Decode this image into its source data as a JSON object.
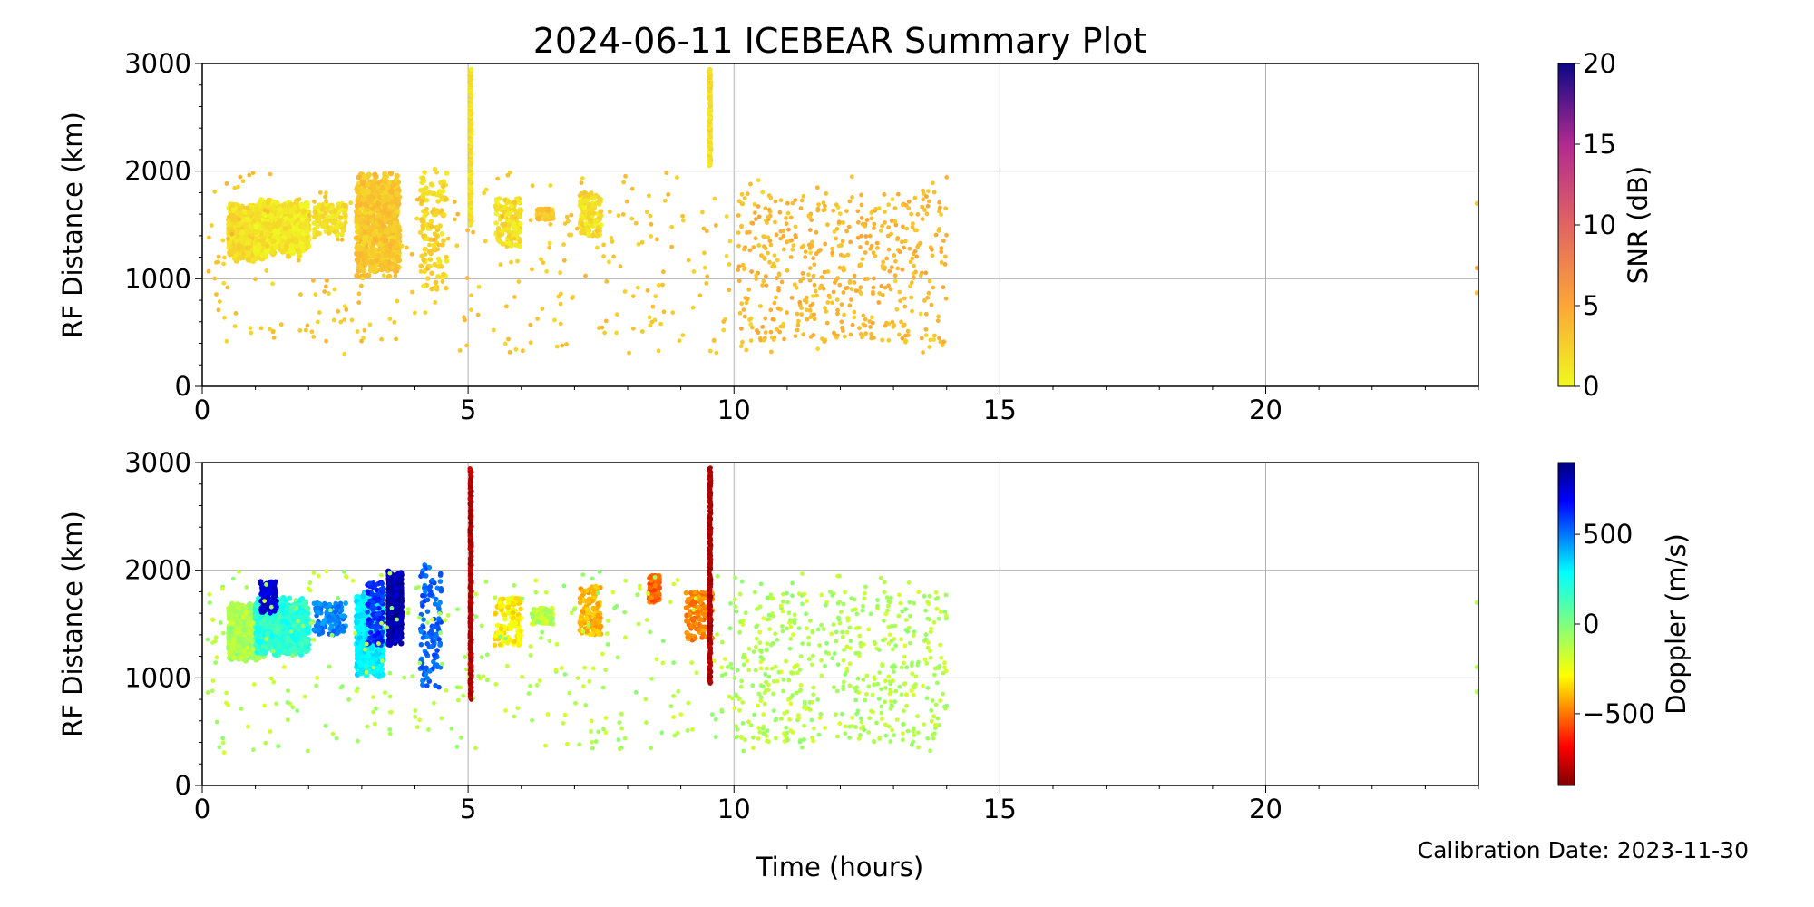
{
  "figure": {
    "title": "2024-06-11 ICEBEAR Summary Plot",
    "calibration": "Calibration Date: 2023-11-30",
    "xlabel": "Time (hours)"
  },
  "chart_data": [
    {
      "type": "scatter",
      "name": "snr-panel",
      "ylabel": "RF Distance (km)",
      "xlim": [
        0,
        24
      ],
      "ylim": [
        0,
        3000
      ],
      "xticks": [
        0,
        5,
        10,
        15,
        20
      ],
      "yticks": [
        0,
        1000,
        2000,
        3000
      ],
      "grid": true,
      "colorbar": {
        "label": "SNR (dB)",
        "range": [
          0,
          20
        ],
        "ticks": [
          0,
          5,
          10,
          15,
          20
        ],
        "colormap": "plasma_r"
      },
      "clusters": [
        {
          "x": [
            0.5,
            1.2
          ],
          "y": [
            1150,
            1700
          ],
          "value": 1.5,
          "density": "dense"
        },
        {
          "x": [
            1.0,
            2.0
          ],
          "y": [
            1200,
            1750
          ],
          "value": 1.0,
          "density": "dense"
        },
        {
          "x": [
            2.1,
            2.7
          ],
          "y": [
            1400,
            1700
          ],
          "value": 1.5,
          "density": "medium"
        },
        {
          "x": [
            2.9,
            3.7
          ],
          "y": [
            1000,
            2000
          ],
          "value": 3.0,
          "density": "dense"
        },
        {
          "x": [
            4.1,
            4.6
          ],
          "y": [
            900,
            2050
          ],
          "value": 2.0,
          "density": "medium"
        },
        {
          "x": [
            5.5,
            6.0
          ],
          "y": [
            1300,
            1750
          ],
          "value": 1.5,
          "density": "medium"
        },
        {
          "x": [
            6.3,
            6.6
          ],
          "y": [
            1550,
            1650
          ],
          "value": 3.0,
          "density": "medium"
        },
        {
          "x": [
            7.1,
            7.5
          ],
          "y": [
            1400,
            1800
          ],
          "value": 1.5,
          "density": "medium"
        },
        {
          "x": [
            0.1,
            14.0
          ],
          "y": [
            300,
            2000
          ],
          "value": 3.0,
          "density": "sparse"
        },
        {
          "x": [
            10.0,
            14.0
          ],
          "y": [
            400,
            1800
          ],
          "value": 4.0,
          "density": "sparse"
        }
      ],
      "streaks": [
        {
          "x": 5.05,
          "y": [
            1500,
            2950
          ],
          "value": 1.5
        },
        {
          "x": 9.55,
          "y": [
            2050,
            2950
          ],
          "value": 1.5
        }
      ],
      "points": [
        {
          "x": 24.0,
          "y": 1700,
          "value": 3
        },
        {
          "x": 24.0,
          "y": 1100,
          "value": 5
        },
        {
          "x": 24.0,
          "y": 870,
          "value": 3
        }
      ]
    },
    {
      "type": "scatter",
      "name": "doppler-panel",
      "ylabel": "RF Distance (km)",
      "xlim": [
        0,
        24
      ],
      "ylim": [
        0,
        3000
      ],
      "xticks": [
        0,
        5,
        10,
        15,
        20
      ],
      "yticks": [
        0,
        1000,
        2000,
        3000
      ],
      "grid": true,
      "colorbar": {
        "label": "Doppler (m/s)",
        "range": [
          -900,
          900
        ],
        "ticks": [
          -500,
          0,
          500
        ],
        "tick_labels": [
          "−500",
          "0",
          "500"
        ],
        "colormap": "jet_r"
      },
      "clusters": [
        {
          "x": [
            0.5,
            1.2
          ],
          "y": [
            1150,
            1700
          ],
          "value": -80,
          "density": "dense"
        },
        {
          "x": [
            1.0,
            2.0
          ],
          "y": [
            1200,
            1750
          ],
          "value": 150,
          "density": "dense"
        },
        {
          "x": [
            1.1,
            1.4
          ],
          "y": [
            1600,
            1900
          ],
          "value": 750,
          "density": "medium"
        },
        {
          "x": [
            2.1,
            2.7
          ],
          "y": [
            1400,
            1700
          ],
          "value": 450,
          "density": "medium"
        },
        {
          "x": [
            2.9,
            3.4
          ],
          "y": [
            1000,
            1800
          ],
          "value": 250,
          "density": "dense"
        },
        {
          "x": [
            3.1,
            3.4
          ],
          "y": [
            1300,
            1900
          ],
          "value": 600,
          "density": "medium"
        },
        {
          "x": [
            3.5,
            3.75
          ],
          "y": [
            1300,
            2000
          ],
          "value": 820,
          "density": "dense"
        },
        {
          "x": [
            4.1,
            4.5
          ],
          "y": [
            900,
            2050
          ],
          "value": 500,
          "density": "medium"
        },
        {
          "x": [
            5.5,
            6.0
          ],
          "y": [
            1300,
            1750
          ],
          "value": -250,
          "density": "medium"
        },
        {
          "x": [
            6.2,
            6.6
          ],
          "y": [
            1500,
            1650
          ],
          "value": -100,
          "density": "medium"
        },
        {
          "x": [
            7.1,
            7.5
          ],
          "y": [
            1400,
            1850
          ],
          "value": -350,
          "density": "medium"
        },
        {
          "x": [
            8.4,
            8.6
          ],
          "y": [
            1700,
            1950
          ],
          "value": -500,
          "density": "medium"
        },
        {
          "x": [
            9.1,
            9.6
          ],
          "y": [
            1350,
            1800
          ],
          "value": -450,
          "density": "medium"
        },
        {
          "x": [
            0.1,
            14.0
          ],
          "y": [
            300,
            2000
          ],
          "value": -90,
          "density": "sparse"
        },
        {
          "x": [
            10.0,
            14.0
          ],
          "y": [
            400,
            1800
          ],
          "value": -90,
          "density": "sparse"
        }
      ],
      "streaks": [
        {
          "x": 5.05,
          "y": [
            800,
            2950
          ],
          "value": -820
        },
        {
          "x": 9.55,
          "y": [
            950,
            2950
          ],
          "value": -820
        }
      ],
      "points": [
        {
          "x": 24.0,
          "y": 1700,
          "value": -90
        },
        {
          "x": 24.0,
          "y": 1100,
          "value": -90
        },
        {
          "x": 24.0,
          "y": 870,
          "value": -90
        }
      ]
    }
  ]
}
